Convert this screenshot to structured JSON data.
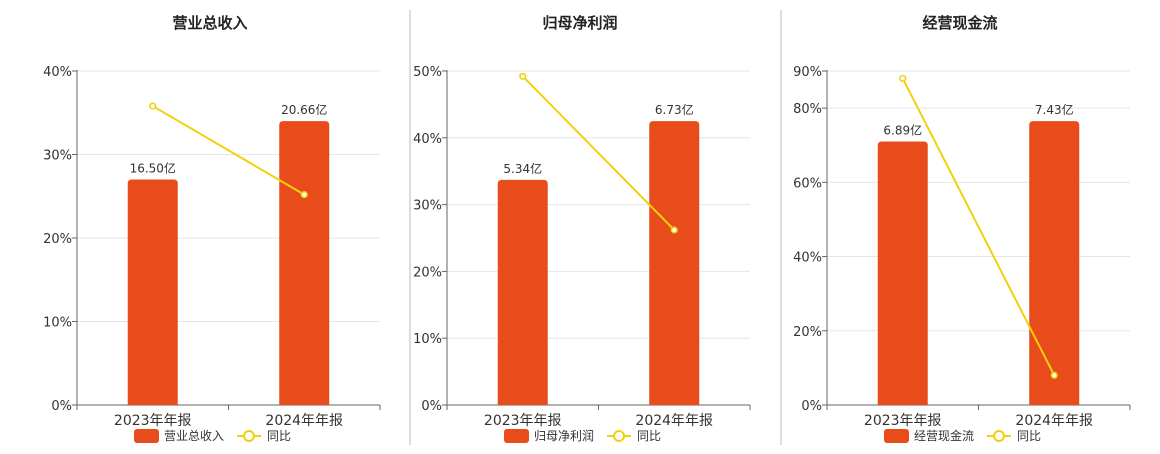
{
  "colors": {
    "bar": "#e84c1a",
    "line": "#f2d10c",
    "axis": "#666666",
    "grid": "#e6e6e6",
    "divider": "#bbbbbb",
    "text": "#333333"
  },
  "categories": [
    "2023年年报",
    "2024年年报"
  ],
  "chart_data": [
    {
      "type": "bar",
      "title": "营业总收入",
      "categories": [
        "2023年年报",
        "2024年年报"
      ],
      "ylim": [
        0,
        40
      ],
      "yticks": [
        "0%",
        "10%",
        "20%",
        "30%",
        "40%"
      ],
      "grid": true,
      "legend_position": "bottom",
      "series": [
        {
          "name": "营业总收入",
          "type": "bar",
          "values": [
            27.0,
            34.0
          ],
          "labels": [
            "16.50亿",
            "20.66亿"
          ]
        },
        {
          "name": "同比",
          "type": "line",
          "values": [
            35.8,
            25.2
          ]
        }
      ]
    },
    {
      "type": "bar",
      "title": "归母净利润",
      "categories": [
        "2023年年报",
        "2024年年报"
      ],
      "ylim": [
        0,
        50
      ],
      "yticks": [
        "0%",
        "10%",
        "20%",
        "30%",
        "40%",
        "50%"
      ],
      "grid": true,
      "legend_position": "bottom",
      "series": [
        {
          "name": "归母净利润",
          "type": "bar",
          "values": [
            33.7,
            42.5
          ],
          "labels": [
            "5.34亿",
            "6.73亿"
          ]
        },
        {
          "name": "同比",
          "type": "line",
          "values": [
            49.2,
            26.2
          ]
        }
      ]
    },
    {
      "type": "bar",
      "title": "经营现金流",
      "categories": [
        "2023年年报",
        "2024年年报"
      ],
      "ylim": [
        0,
        90
      ],
      "yticks": [
        "0%",
        "20%",
        "40%",
        "60%",
        "80%",
        "90%"
      ],
      "grid": true,
      "legend_position": "bottom",
      "series": [
        {
          "name": "经营现金流",
          "type": "bar",
          "values": [
            71.0,
            76.5
          ],
          "labels": [
            "6.89亿",
            "7.43亿"
          ]
        },
        {
          "name": "同比",
          "type": "line",
          "values": [
            88.0,
            8.0
          ]
        }
      ]
    }
  ]
}
